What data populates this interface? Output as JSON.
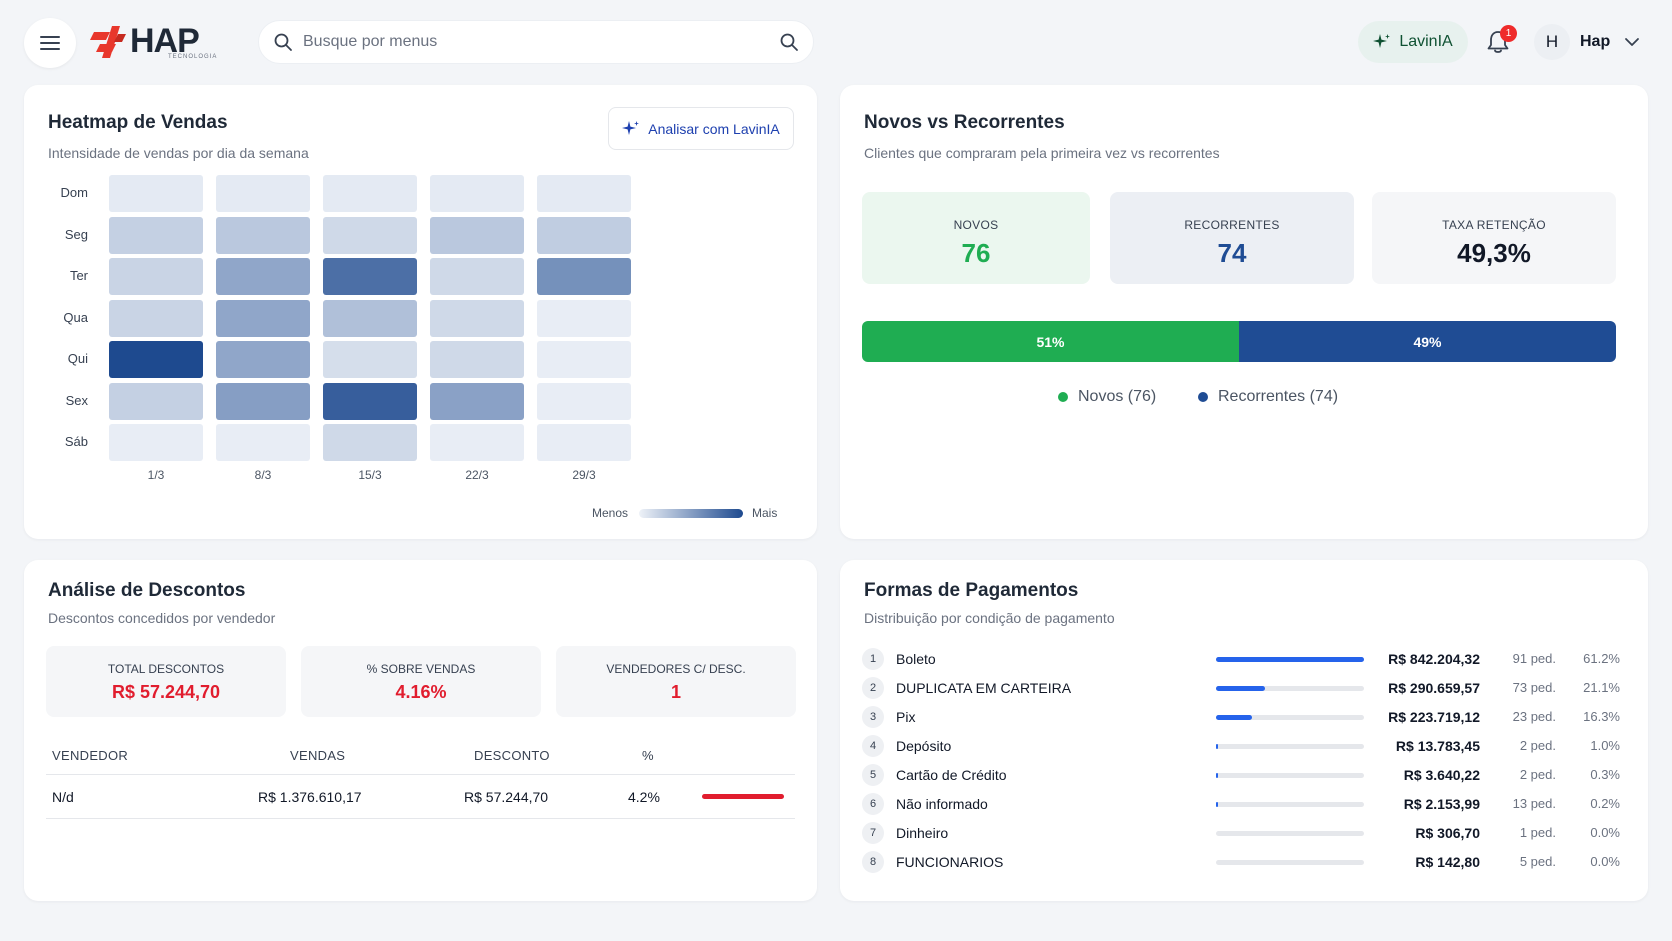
{
  "header": {
    "logo_text": "HAP",
    "logo_subtext": "TECNOLOGIA",
    "search_placeholder": "Busque por menus",
    "assistant_label": "LavinIA",
    "notification_count": "1",
    "avatar_initial": "H",
    "user_name": "Hap"
  },
  "heatmap": {
    "title": "Heatmap de Vendas",
    "subtitle": "Intensidade de vendas por dia da semana",
    "analyze_button": "Analisar com LavinIA",
    "days": [
      "Dom",
      "Seg",
      "Ter",
      "Qua",
      "Qui",
      "Sex",
      "Sáb"
    ],
    "weeks": [
      "1/3",
      "8/3",
      "15/3",
      "22/3",
      "29/3"
    ],
    "legend_less": "Menos",
    "legend_more": "Mais",
    "colors": {
      "low": "#eef2f8",
      "high": "#1e4a8f"
    },
    "chart_data": {
      "type": "heatmap",
      "title": "Heatmap de Vendas",
      "x": [
        "1/3",
        "8/3",
        "15/3",
        "22/3",
        "29/3"
      ],
      "y": [
        "Dom",
        "Seg",
        "Ter",
        "Qua",
        "Qui",
        "Sex",
        "Sáb"
      ],
      "intensity": [
        [
          0.05,
          0.05,
          0.05,
          0.05,
          0.05
        ],
        [
          0.2,
          0.25,
          0.15,
          0.25,
          0.22
        ],
        [
          0.18,
          0.45,
          0.78,
          0.15,
          0.58
        ],
        [
          0.18,
          0.45,
          0.3,
          0.15,
          0.03
        ],
        [
          1.0,
          0.45,
          0.12,
          0.15,
          0.03
        ],
        [
          0.2,
          0.5,
          0.88,
          0.48,
          0.03
        ],
        [
          0.03,
          0.03,
          0.15,
          0.03,
          0.03
        ]
      ]
    }
  },
  "novos": {
    "title": "Novos vs Recorrentes",
    "subtitle": "Clientes que compraram pela primeira vez vs recorrentes",
    "kpis": [
      {
        "label": "NOVOS",
        "value": "76"
      },
      {
        "label": "RECORRENTES",
        "value": "74"
      },
      {
        "label": "TAXA RETENÇÃO",
        "value": "49,3%"
      }
    ],
    "bar": {
      "new_pct_label": "51%",
      "returning_pct_label": "49%",
      "new_share": 0.5,
      "returning_share": 0.5
    },
    "legend": {
      "new": "Novos (76)",
      "returning": "Recorrentes (74)"
    },
    "colors": {
      "new": "#1fad52",
      "returning": "#1f4c94"
    }
  },
  "descontos": {
    "title": "Análise de Descontos",
    "subtitle": "Descontos concedidos por vendedor",
    "kpis": [
      {
        "label": "TOTAL DESCONTOS",
        "value": "R$ 57.244,70"
      },
      {
        "label": "% SOBRE VENDAS",
        "value": "4.16%"
      },
      {
        "label": "VENDEDORES C/ DESC.",
        "value": "1"
      }
    ],
    "table": {
      "headers": [
        "VENDEDOR",
        "VENDAS",
        "DESCONTO",
        "%"
      ],
      "rows": [
        {
          "vendedor": "N/d",
          "vendas": "R$ 1.376.610,17",
          "desconto": "R$ 57.244,70",
          "pct": "4.2%",
          "bar_share": 1.0
        }
      ]
    }
  },
  "pagamentos": {
    "title": "Formas de Pagamentos",
    "subtitle": "Distribuição por condição de pagamento",
    "rows": [
      {
        "rank": "1",
        "name": "Boleto",
        "amount": "R$ 842.204,32",
        "orders": "91 ped.",
        "pct": "61.2%",
        "share": 1.0
      },
      {
        "rank": "2",
        "name": "DUPLICATA EM CARTEIRA",
        "amount": "R$ 290.659,57",
        "orders": "73 ped.",
        "pct": "21.1%",
        "share": 0.33
      },
      {
        "rank": "3",
        "name": "Pix",
        "amount": "R$ 223.719,12",
        "orders": "23 ped.",
        "pct": "16.3%",
        "share": 0.24
      },
      {
        "rank": "4",
        "name": "Depósito",
        "amount": "R$ 13.783,45",
        "orders": "2 ped.",
        "pct": "1.0%",
        "share": 0.016
      },
      {
        "rank": "5",
        "name": "Cartão de Crédito",
        "amount": "R$ 3.640,22",
        "orders": "2 ped.",
        "pct": "0.3%",
        "share": 0.006
      },
      {
        "rank": "6",
        "name": "Não informado",
        "amount": "R$ 2.153,99",
        "orders": "13 ped.",
        "pct": "0.2%",
        "share": 0.004
      },
      {
        "rank": "7",
        "name": "Dinheiro",
        "amount": "R$ 306,70",
        "orders": "1 ped.",
        "pct": "0.0%",
        "share": 0
      },
      {
        "rank": "8",
        "name": "FUNCIONARIOS",
        "amount": "R$ 142,80",
        "orders": "5 ped.",
        "pct": "0.0%",
        "share": 0
      }
    ],
    "colors": {
      "bar": "#2563eb"
    }
  }
}
